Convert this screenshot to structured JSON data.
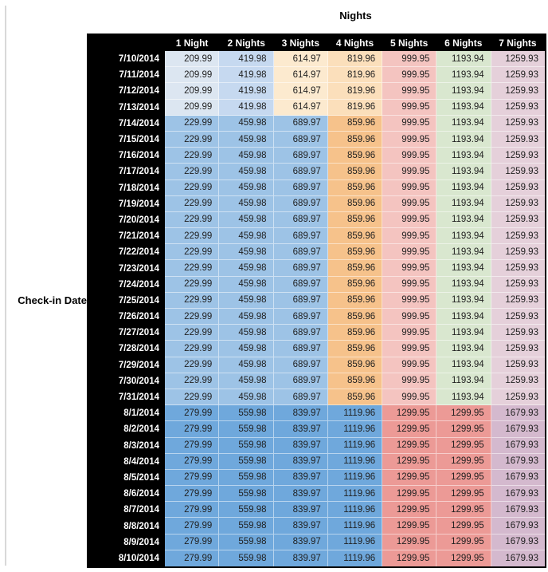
{
  "chart_data": {
    "type": "table",
    "title": "Nights",
    "row_axis_label": "Check-in Date",
    "columns": [
      "1 Night",
      "2 Nights",
      "3 Nights",
      "4 Nights",
      "5 Nights",
      "6 Nights",
      "7 Nights"
    ],
    "header_bg": "#000000",
    "header_text_color": "#ffffff",
    "value_text_color": "#1f1f1f",
    "grid_separator_color": "rgba(255,255,255,0.5)",
    "sections": [
      {
        "dates": [
          "7/10/2014",
          "7/11/2014",
          "7/12/2014",
          "7/13/2014"
        ],
        "values": [
          "209.99",
          "419.98",
          "614.97",
          "819.96",
          "999.95",
          "1193.94",
          "1259.93"
        ],
        "cell_colors": [
          "#dce6f1",
          "#c6d9f0",
          "#fceacf",
          "#fbdfbb",
          "#f4c4c0",
          "#d9e7cf",
          "#e5d0da"
        ]
      },
      {
        "dates": [
          "7/14/2014",
          "7/15/2014",
          "7/16/2014",
          "7/17/2014",
          "7/18/2014",
          "7/19/2014",
          "7/20/2014",
          "7/21/2014",
          "7/22/2014",
          "7/23/2014",
          "7/24/2014",
          "7/25/2014",
          "7/26/2014",
          "7/27/2014",
          "7/28/2014",
          "7/29/2014",
          "7/30/2014",
          "7/31/2014"
        ],
        "values": [
          "229.99",
          "459.98",
          "689.97",
          "859.96",
          "999.95",
          "1193.94",
          "1259.93"
        ],
        "cell_colors": [
          "#9dc3e6",
          "#9dc3e6",
          "#9dc3e6",
          "#f6c28b",
          "#f4c4c0",
          "#d9e7cf",
          "#e5d0da"
        ]
      },
      {
        "dates": [
          "8/1/2014",
          "8/2/2014",
          "8/3/2014",
          "8/4/2014",
          "8/5/2014",
          "8/6/2014",
          "8/7/2014",
          "8/8/2014",
          "8/9/2014",
          "8/10/2014"
        ],
        "values": [
          "279.99",
          "559.98",
          "839.97",
          "1119.96",
          "1299.95",
          "1299.95",
          "1679.93"
        ],
        "cell_colors": [
          "#6fa8dc",
          "#6fa8dc",
          "#6fa8dc",
          "#6fa8dc",
          "#ec9a96",
          "#ec9a96",
          "#d4b9ce"
        ]
      }
    ]
  }
}
